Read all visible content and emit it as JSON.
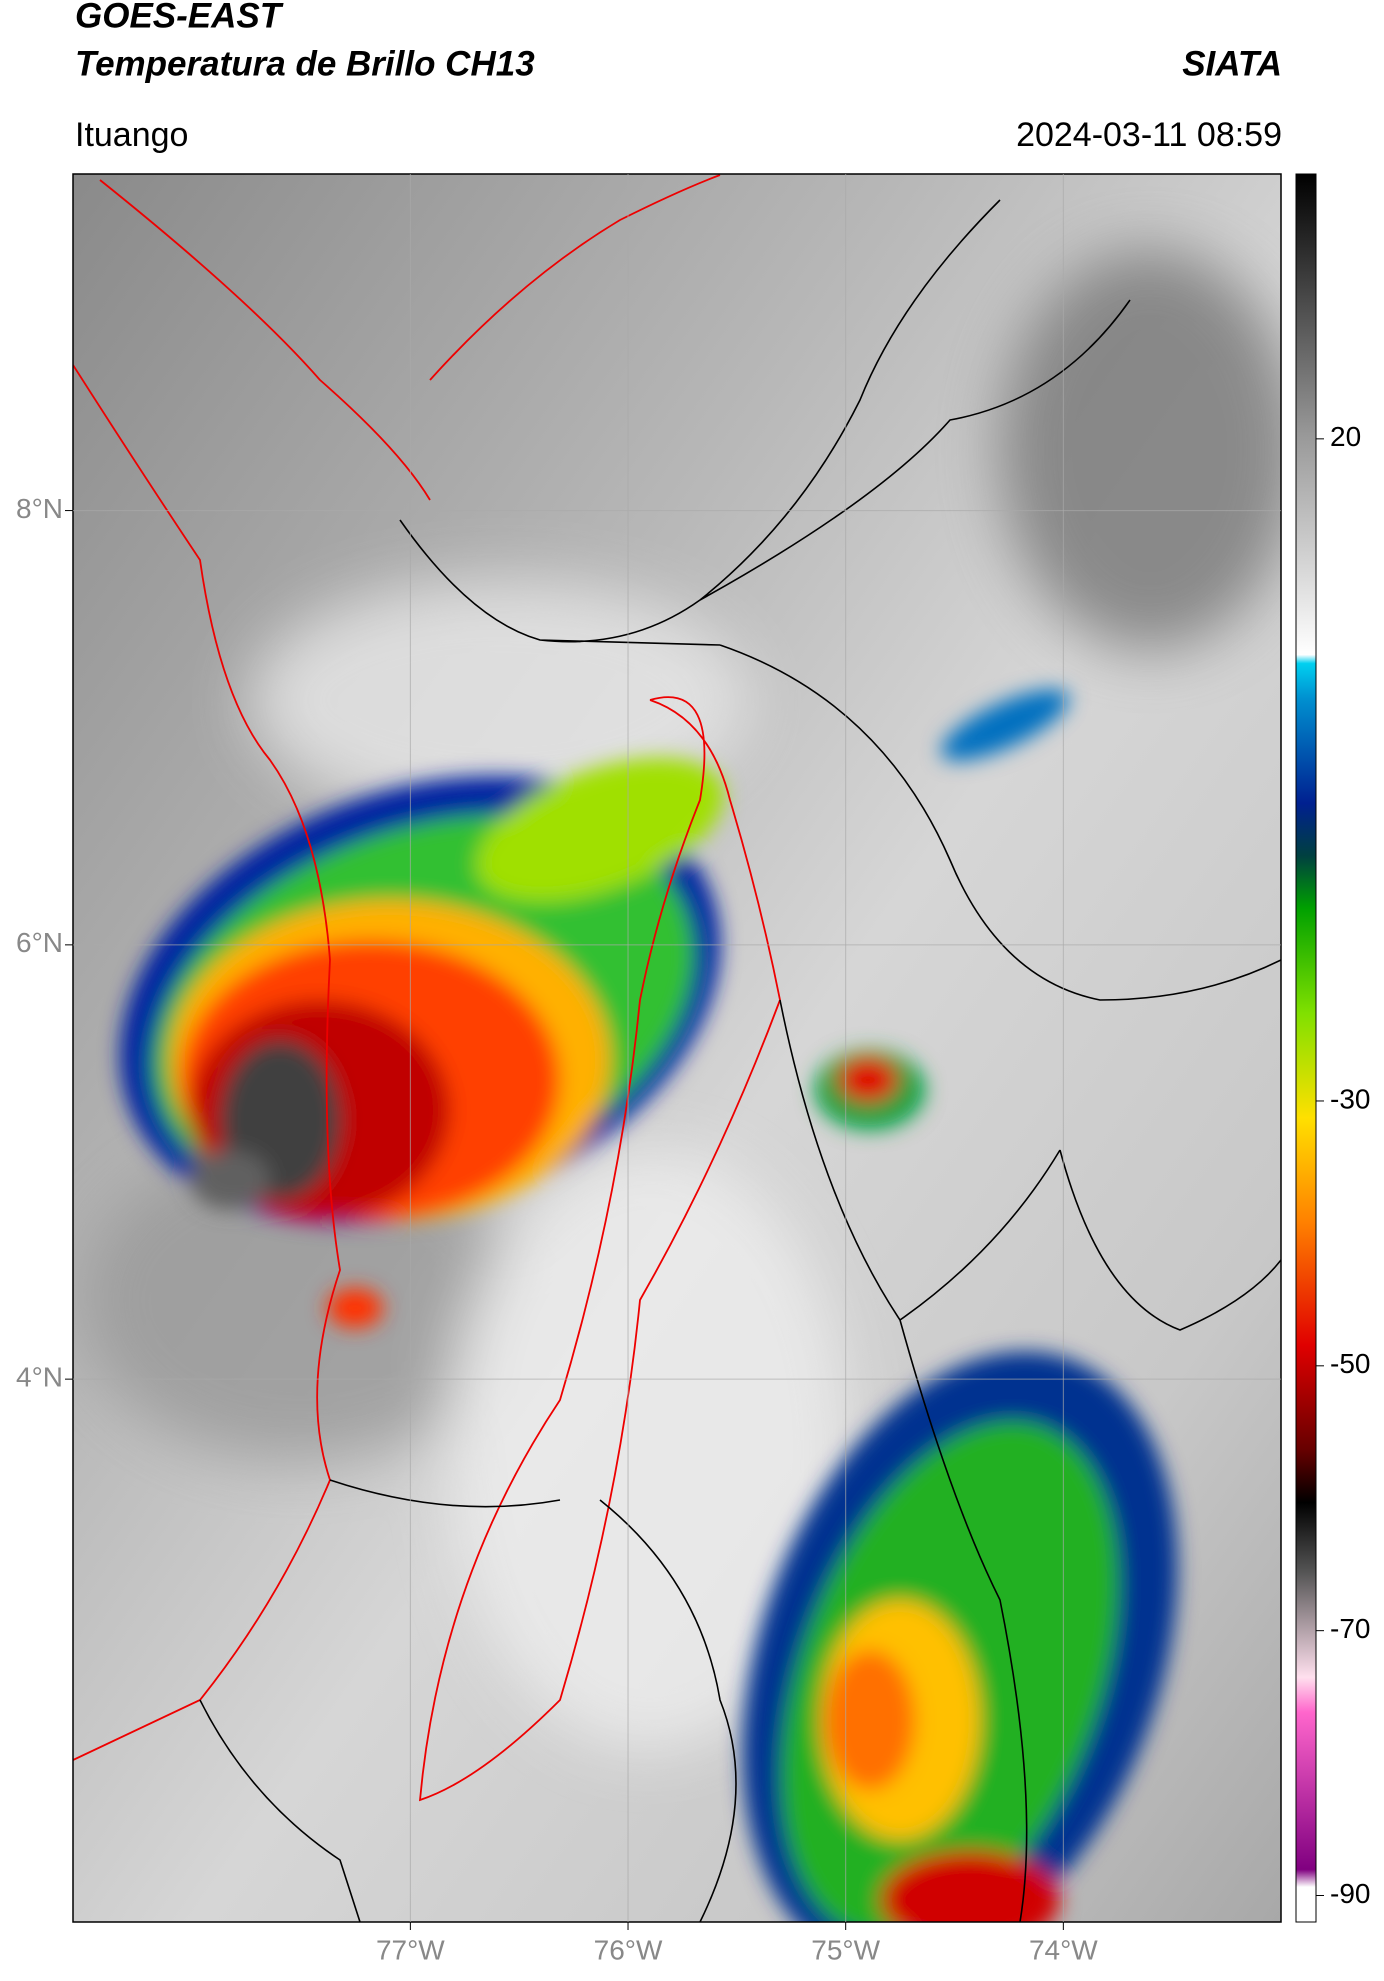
{
  "header": {
    "title": "GOES-EAST",
    "subtitle": "Temperatura de Brillo CH13",
    "source": "SIATA",
    "location": "Ituango",
    "datetime": "2024-03-11 08:59"
  },
  "map": {
    "lonlim": [
      -78.55,
      -73.0
    ],
    "latlim": [
      1.5,
      9.55
    ],
    "xticks": [
      {
        "value": -77,
        "label": "77°W"
      },
      {
        "value": -76,
        "label": "76°W"
      },
      {
        "value": -75,
        "label": "75°W"
      },
      {
        "value": -74,
        "label": "74°W"
      }
    ],
    "yticks": [
      {
        "value": 8,
        "label": "8°N"
      },
      {
        "value": 6,
        "label": "6°N"
      },
      {
        "value": 4,
        "label": "4°N"
      }
    ]
  },
  "colorbar": {
    "lim": [
      -92,
      40
    ],
    "ticks": [
      20,
      -30,
      -50,
      -70,
      -90
    ]
  }
}
